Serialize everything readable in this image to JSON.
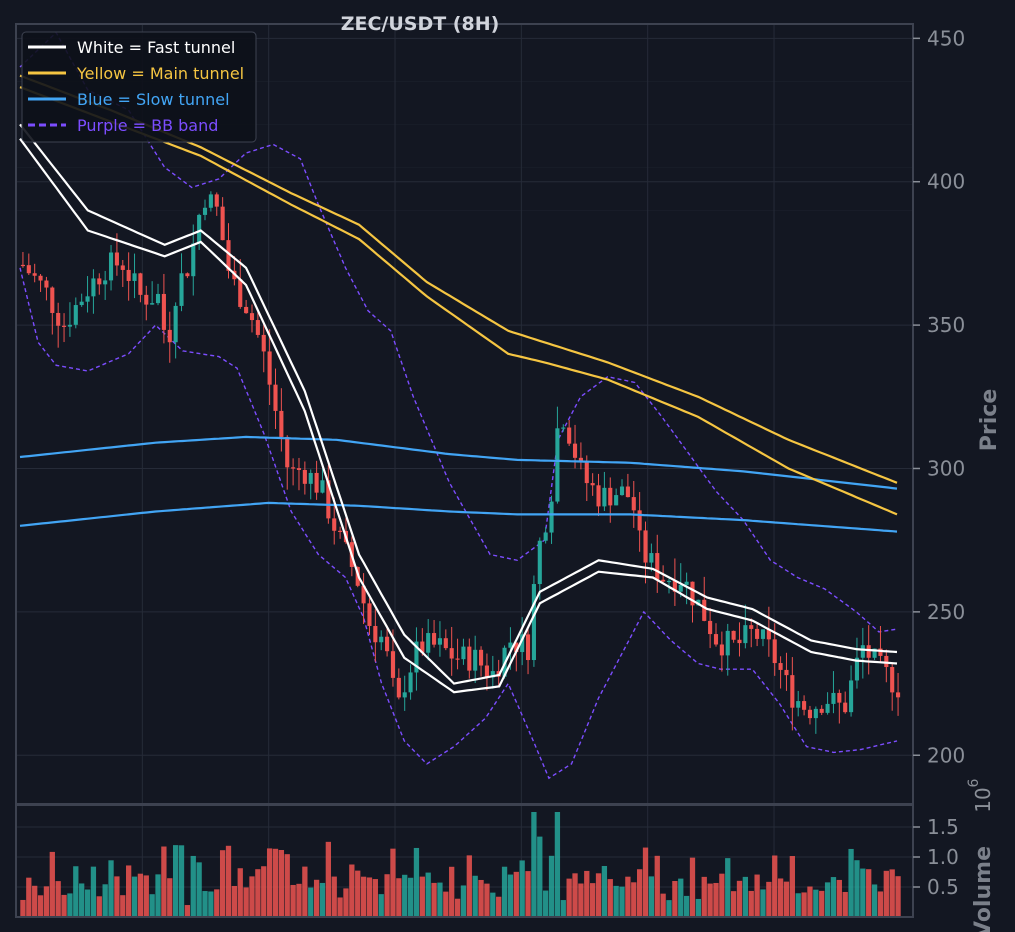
{
  "colors": {
    "background": "#131722",
    "grid": "#262b38",
    "frame": "#3d4250",
    "up_candle": "#26a69a",
    "down_candle": "#ef5350",
    "fast_tunnel": "#ffffff",
    "main_tunnel": "#f5c542",
    "slow_tunnel": "#42a5f5",
    "bb_band": "#7c4dff"
  },
  "chart_data": {
    "type": "candlestick",
    "title": "ZEC/USDT (8H)",
    "ylabel": "Price",
    "ylim": [
      183,
      455
    ],
    "yticks": [
      200,
      250,
      300,
      350,
      400,
      450
    ],
    "grid": true,
    "legend_position": "top-left",
    "legend": [
      {
        "label": "White = Fast tunnel",
        "color": "#ffffff",
        "style": "solid"
      },
      {
        "label": "Yellow = Main tunnel",
        "color": "#f5c542",
        "style": "solid"
      },
      {
        "label": "Blue = Slow tunnel",
        "color": "#42a5f5",
        "style": "solid"
      },
      {
        "label": "Purple = BB band",
        "color": "#7c4dff",
        "style": "dashed"
      }
    ],
    "candles_count": 150,
    "price_anchors": [
      [
        0,
        371
      ],
      [
        5,
        362
      ],
      [
        9,
        350
      ],
      [
        14,
        362
      ],
      [
        18,
        370
      ],
      [
        22,
        372
      ],
      [
        26,
        360
      ],
      [
        30,
        360
      ],
      [
        32,
        342
      ],
      [
        34,
        363
      ],
      [
        37,
        372
      ],
      [
        40,
        396
      ],
      [
        43,
        390
      ],
      [
        46,
        366
      ],
      [
        50,
        356
      ],
      [
        53,
        342
      ],
      [
        56,
        320
      ],
      [
        59,
        298
      ],
      [
        62,
        300
      ],
      [
        66,
        293
      ],
      [
        70,
        276
      ],
      [
        74,
        262
      ],
      [
        77,
        245
      ],
      [
        80,
        240
      ],
      [
        83,
        215
      ],
      [
        85,
        228
      ],
      [
        88,
        238
      ],
      [
        92,
        238
      ],
      [
        96,
        234
      ],
      [
        100,
        234
      ],
      [
        104,
        228
      ],
      [
        108,
        240
      ],
      [
        112,
        238
      ],
      [
        114,
        270
      ],
      [
        117,
        290
      ],
      [
        119,
        322
      ],
      [
        121,
        313
      ],
      [
        124,
        297
      ],
      [
        128,
        290
      ],
      [
        132,
        292
      ],
      [
        135,
        290
      ],
      [
        137,
        271
      ],
      [
        142,
        262
      ],
      [
        146,
        262
      ],
      [
        150,
        252
      ],
      [
        154,
        240
      ],
      [
        158,
        238
      ],
      [
        162,
        243
      ],
      [
        166,
        236
      ],
      [
        170,
        222
      ],
      [
        174,
        216
      ],
      [
        178,
        220
      ],
      [
        182,
        216
      ],
      [
        186,
        238
      ],
      [
        190,
        230
      ],
      [
        194,
        224
      ]
    ],
    "fast_tunnel": {
      "upper": [
        [
          0,
          420
        ],
        [
          15,
          390
        ],
        [
          32,
          378
        ],
        [
          40,
          383
        ],
        [
          50,
          370
        ],
        [
          63,
          327
        ],
        [
          75,
          270
        ],
        [
          85,
          242
        ],
        [
          96,
          225
        ],
        [
          106,
          228
        ],
        [
          115,
          257
        ],
        [
          128,
          268
        ],
        [
          140,
          265
        ],
        [
          152,
          255
        ],
        [
          162,
          251
        ],
        [
          175,
          240
        ],
        [
          185,
          237
        ],
        [
          194,
          236
        ]
      ],
      "lower": [
        [
          0,
          415
        ],
        [
          15,
          383
        ],
        [
          32,
          374
        ],
        [
          40,
          379
        ],
        [
          50,
          364
        ],
        [
          63,
          320
        ],
        [
          75,
          262
        ],
        [
          85,
          234
        ],
        [
          96,
          222
        ],
        [
          106,
          224
        ],
        [
          115,
          253
        ],
        [
          128,
          264
        ],
        [
          140,
          262
        ],
        [
          152,
          251
        ],
        [
          162,
          247
        ],
        [
          175,
          236
        ],
        [
          185,
          233
        ],
        [
          194,
          232
        ]
      ]
    },
    "main_tunnel": {
      "upper": [
        [
          0,
          437
        ],
        [
          20,
          425
        ],
        [
          40,
          412
        ],
        [
          60,
          396
        ],
        [
          75,
          385
        ],
        [
          90,
          365
        ],
        [
          108,
          348
        ],
        [
          116,
          344
        ],
        [
          130,
          337
        ],
        [
          150,
          325
        ],
        [
          170,
          310
        ],
        [
          194,
          295
        ]
      ],
      "lower": [
        [
          0,
          433
        ],
        [
          20,
          421
        ],
        [
          40,
          409
        ],
        [
          60,
          392
        ],
        [
          75,
          380
        ],
        [
          90,
          360
        ],
        [
          108,
          340
        ],
        [
          116,
          337
        ],
        [
          130,
          331
        ],
        [
          150,
          318
        ],
        [
          170,
          300
        ],
        [
          194,
          284
        ]
      ]
    },
    "slow_tunnel": {
      "upper": [
        [
          0,
          304
        ],
        [
          30,
          309
        ],
        [
          50,
          311
        ],
        [
          70,
          310
        ],
        [
          95,
          305
        ],
        [
          110,
          303
        ],
        [
          135,
          302
        ],
        [
          160,
          299
        ],
        [
          194,
          293
        ]
      ],
      "lower": [
        [
          0,
          280
        ],
        [
          30,
          285
        ],
        [
          55,
          288
        ],
        [
          75,
          287
        ],
        [
          95,
          285
        ],
        [
          110,
          284
        ],
        [
          135,
          284
        ],
        [
          160,
          282
        ],
        [
          194,
          278
        ]
      ]
    },
    "bb_band": {
      "upper": [
        [
          0,
          440
        ],
        [
          8,
          452
        ],
        [
          15,
          432
        ],
        [
          24,
          425
        ],
        [
          32,
          405
        ],
        [
          38,
          398
        ],
        [
          44,
          401
        ],
        [
          50,
          410
        ],
        [
          56,
          413
        ],
        [
          62,
          408
        ],
        [
          66,
          392
        ],
        [
          72,
          370
        ],
        [
          77,
          355
        ],
        [
          82,
          348
        ],
        [
          87,
          325
        ],
        [
          95,
          295
        ],
        [
          104,
          270
        ],
        [
          110,
          268
        ],
        [
          116,
          275
        ],
        [
          119,
          310
        ],
        [
          124,
          325
        ],
        [
          130,
          332
        ],
        [
          136,
          330
        ],
        [
          142,
          318
        ],
        [
          148,
          305
        ],
        [
          154,
          292
        ],
        [
          160,
          282
        ],
        [
          166,
          268
        ],
        [
          172,
          262
        ],
        [
          178,
          258
        ],
        [
          185,
          250
        ],
        [
          190,
          243
        ],
        [
          194,
          244
        ]
      ],
      "lower": [
        [
          0,
          370
        ],
        [
          4,
          344
        ],
        [
          8,
          336
        ],
        [
          15,
          334
        ],
        [
          24,
          340
        ],
        [
          30,
          350
        ],
        [
          36,
          341
        ],
        [
          44,
          339
        ],
        [
          48,
          335
        ],
        [
          54,
          312
        ],
        [
          60,
          285
        ],
        [
          66,
          270
        ],
        [
          72,
          262
        ],
        [
          76,
          248
        ],
        [
          80,
          225
        ],
        [
          85,
          205
        ],
        [
          90,
          197
        ],
        [
          96,
          203
        ],
        [
          103,
          213
        ],
        [
          108,
          225
        ],
        [
          113,
          207
        ],
        [
          117,
          192
        ],
        [
          122,
          197
        ],
        [
          128,
          220
        ],
        [
          133,
          235
        ],
        [
          138,
          250
        ],
        [
          144,
          240
        ],
        [
          150,
          232
        ],
        [
          155,
          230
        ],
        [
          162,
          230
        ],
        [
          168,
          218
        ],
        [
          174,
          203
        ],
        [
          180,
          201
        ],
        [
          186,
          202
        ],
        [
          194,
          205
        ]
      ]
    },
    "volume": {
      "ylabel": "Volume",
      "scale_label": "10",
      "scale_exponent": "6",
      "ylim": [
        0,
        1.8
      ],
      "yticks": [
        0.5,
        1.0,
        1.5
      ],
      "ytick_labels": [
        "0.5",
        "1.0",
        "1.5"
      ]
    }
  }
}
